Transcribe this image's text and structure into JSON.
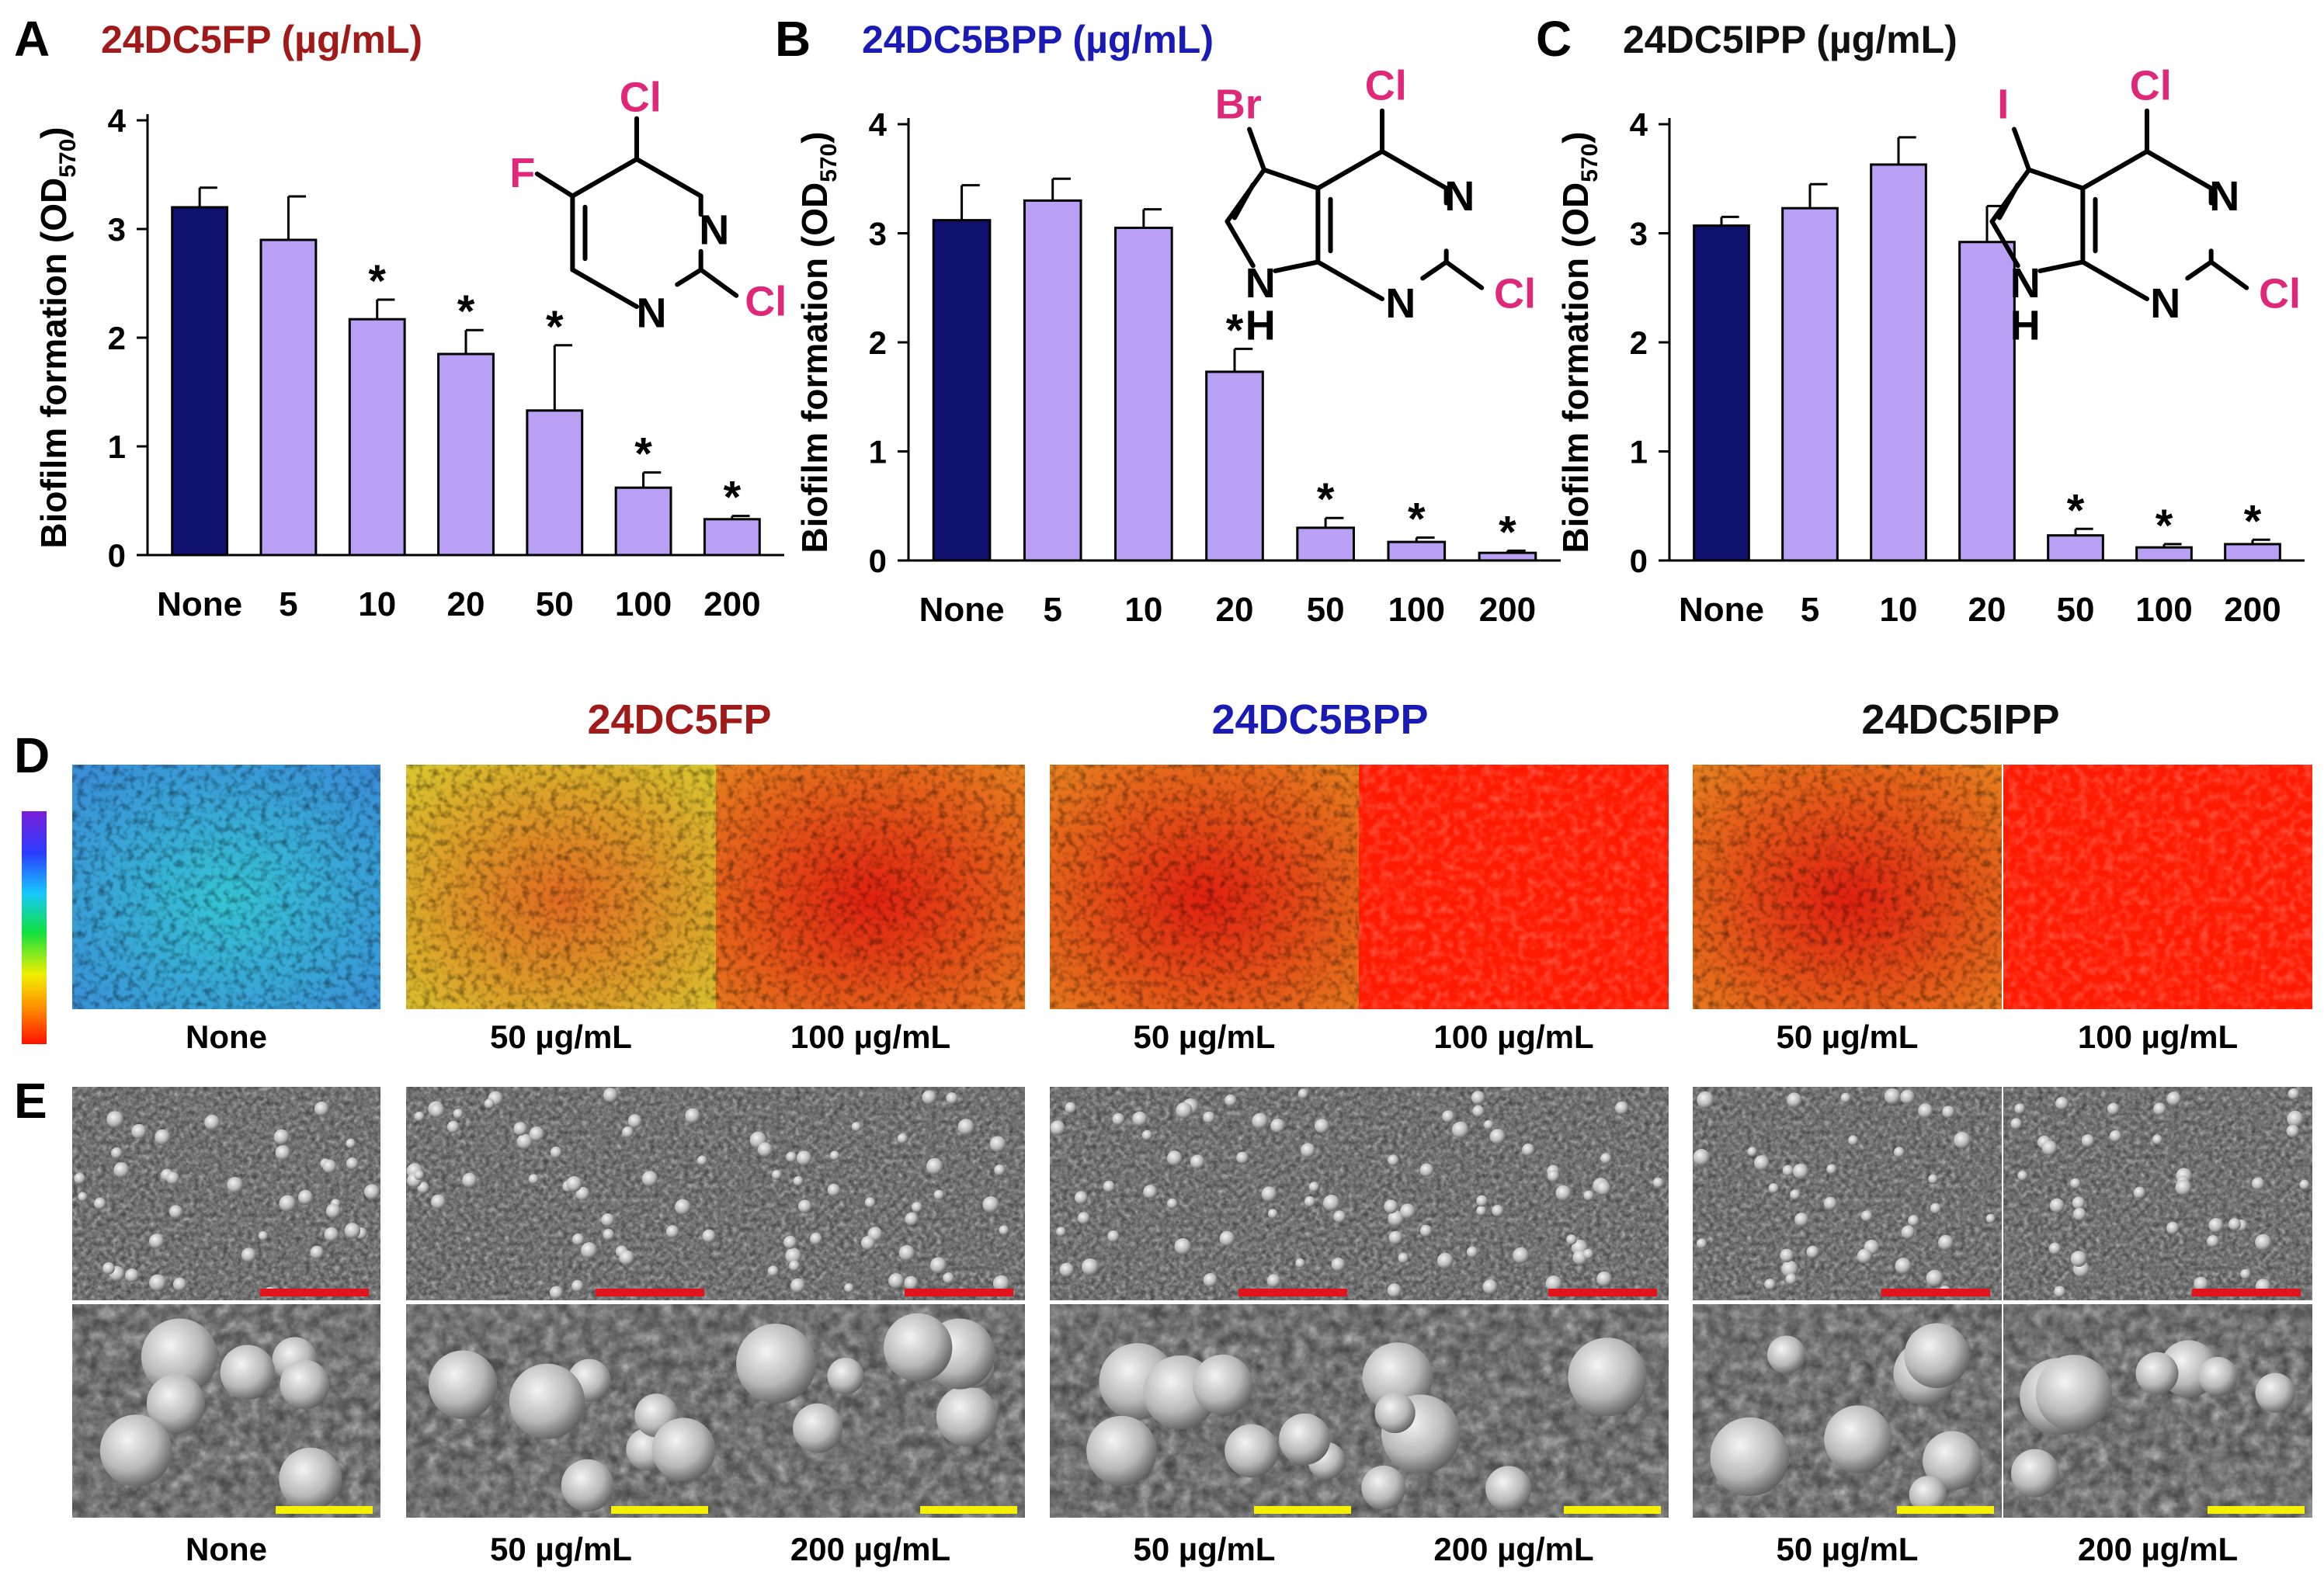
{
  "panels_abc": [
    {
      "letter": "A",
      "title": "24DC5FP (µg/mL)",
      "title_color": "#a11a1a",
      "molecule": {
        "atoms": [
          "Cl",
          "F",
          "N",
          "N",
          "Cl"
        ]
      }
    },
    {
      "letter": "B",
      "title": "24DC5BPP (µg/mL)",
      "title_color": "#1a1ab5",
      "molecule": {
        "atoms": [
          "Br",
          "Cl",
          "N",
          "N",
          "Cl",
          "N",
          "H"
        ]
      }
    },
    {
      "letter": "C",
      "title": "24DC5IPP (µg/mL)",
      "title_color": "#111111",
      "molecule": {
        "atoms": [
          "I",
          "Cl",
          "N",
          "N",
          "Cl",
          "N",
          "H"
        ]
      }
    }
  ],
  "chart_data": [
    {
      "type": "bar",
      "panel": "A",
      "title": "24DC5FP (µg/mL)",
      "categories": [
        "None",
        "5",
        "10",
        "20",
        "50",
        "100",
        "200"
      ],
      "values": [
        3.2,
        2.9,
        2.17,
        1.85,
        1.33,
        0.62,
        0.33
      ],
      "errors": [
        0.18,
        0.4,
        0.18,
        0.22,
        0.6,
        0.14,
        0.03
      ],
      "significant": [
        false,
        false,
        true,
        true,
        true,
        true,
        true
      ],
      "bar_colors": [
        "#10106e",
        "#b9a0f5",
        "#b9a0f5",
        "#b9a0f5",
        "#b9a0f5",
        "#b9a0f5",
        "#b9a0f5"
      ],
      "ylabel": "Biofilm formation (OD570)",
      "ylim": [
        0,
        4
      ],
      "yticks": [
        "0",
        "1",
        "2",
        "3",
        "4"
      ],
      "significance_mark": "*"
    },
    {
      "type": "bar",
      "panel": "B",
      "title": "24DC5BPP (µg/mL)",
      "categories": [
        "None",
        "5",
        "10",
        "20",
        "50",
        "100",
        "200"
      ],
      "values": [
        3.12,
        3.3,
        3.05,
        1.73,
        0.3,
        0.17,
        0.07
      ],
      "errors": [
        0.32,
        0.2,
        0.17,
        0.21,
        0.09,
        0.04,
        0.02
      ],
      "significant": [
        false,
        false,
        false,
        true,
        true,
        true,
        true
      ],
      "bar_colors": [
        "#10106e",
        "#b9a0f5",
        "#b9a0f5",
        "#b9a0f5",
        "#b9a0f5",
        "#b9a0f5",
        "#b9a0f5"
      ],
      "ylabel": "Biofilm formation (OD570)",
      "ylim": [
        0,
        4
      ],
      "yticks": [
        "0",
        "1",
        "2",
        "3",
        "4"
      ],
      "significance_mark": "*"
    },
    {
      "type": "bar",
      "panel": "C",
      "title": "24DC5IPP (µg/mL)",
      "categories": [
        "None",
        "5",
        "10",
        "20",
        "50",
        "100",
        "200"
      ],
      "values": [
        3.07,
        3.23,
        3.63,
        2.92,
        0.23,
        0.12,
        0.15
      ],
      "errors": [
        0.08,
        0.22,
        0.25,
        0.33,
        0.06,
        0.03,
        0.04
      ],
      "significant": [
        false,
        false,
        false,
        false,
        true,
        true,
        true
      ],
      "bar_colors": [
        "#10106e",
        "#b9a0f5",
        "#b9a0f5",
        "#b9a0f5",
        "#b9a0f5",
        "#b9a0f5",
        "#b9a0f5"
      ],
      "ylabel": "Biofilm formation (OD570)",
      "ylim": [
        0,
        4
      ],
      "yticks": [
        "0",
        "1",
        "2",
        "3",
        "4"
      ],
      "significance_mark": "*"
    }
  ],
  "panel_d": {
    "letter": "D",
    "group_titles": [
      {
        "text": "24DC5FP",
        "color": "#a11a1a"
      },
      {
        "text": "24DC5BPP",
        "color": "#1a1ab5"
      },
      {
        "text": "24DC5IPP",
        "color": "#111111"
      }
    ],
    "images": [
      {
        "label": "None",
        "tone": "blue"
      },
      {
        "label": "50 µg/mL",
        "tone": "yellow"
      },
      {
        "label": "100 µg/mL",
        "tone": "orange"
      },
      {
        "label": "50 µg/mL",
        "tone": "orange"
      },
      {
        "label": "100 µg/mL",
        "tone": "red"
      },
      {
        "label": "50 µg/mL",
        "tone": "orange"
      },
      {
        "label": "100 µg/mL",
        "tone": "red"
      }
    ]
  },
  "panel_e": {
    "letter": "E",
    "top_scale_bar_color": "#e0141c",
    "bottom_scale_bar_color": "#f5f000",
    "labels": [
      "None",
      "50 µg/mL",
      "200 µg/mL",
      "50 µg/mL",
      "200 µg/mL",
      "50 µg/mL",
      "200 µg/mL"
    ]
  }
}
